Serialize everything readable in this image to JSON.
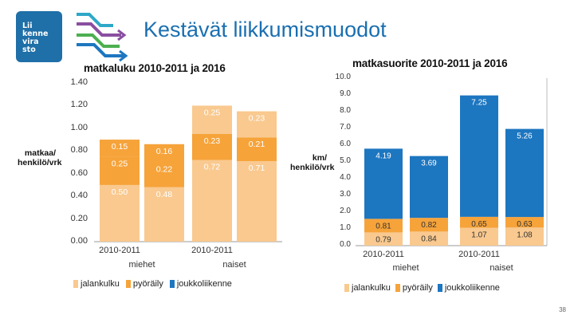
{
  "logo_lines": [
    "Lii",
    "kenne",
    "vira",
    "sto"
  ],
  "slide_title": "Kestävät liikkumismuodot",
  "page_number": "38",
  "legend": [
    {
      "label": "jalankulku",
      "color": "#f9c98f"
    },
    {
      "label": "pyöräily",
      "color": "#f6a33a"
    },
    {
      "label": "joukkoliikenne",
      "color": "#1d76c0"
    }
  ],
  "chart_data": [
    {
      "type": "bar",
      "stacked": true,
      "title": "matkaluku 2010-2011 ja 2016",
      "ylabel": "matkaa/ henkilö/vrk",
      "ylim": [
        0,
        1.4
      ],
      "yticks": [
        "0.00",
        "0.20",
        "0.40",
        "0.60",
        "0.80",
        "1.00",
        "1.20",
        "1.40"
      ],
      "categories": [
        "2010-2011",
        "",
        "2010-2011",
        ""
      ],
      "groups": [
        "miehet",
        "naiset"
      ],
      "series": [
        {
          "name": "jalankulku",
          "values": [
            0.5,
            0.48,
            0.72,
            0.71
          ],
          "labels": [
            "0.50",
            "0.48",
            "0.72",
            "0.71"
          ]
        },
        {
          "name": "pyöräily",
          "values": [
            0.25,
            0.22,
            0.0,
            0.0
          ],
          "labels": [
            "0.25",
            "0.22",
            "",
            ""
          ]
        },
        {
          "name": "joukkoliikenne",
          "values": [
            0.15,
            0.16,
            0.0,
            0.0
          ],
          "labels": [
            "0.15",
            "0.16",
            "",
            ""
          ]
        },
        {
          "name": "",
          "values": [
            0.0,
            0.0,
            0.23,
            0.21
          ],
          "labels": [
            "",
            "",
            "0.23",
            "0.21"
          ]
        },
        {
          "name": "",
          "values": [
            0.0,
            0.0,
            0.25,
            0.23
          ],
          "labels": [
            "",
            "",
            "0.25",
            "0.23"
          ]
        }
      ]
    },
    {
      "type": "bar",
      "stacked": true,
      "title": "matkasuorite 2010-2011 ja 2016",
      "ylabel": "km/ henkilö/vrk",
      "ylim": [
        0,
        10
      ],
      "yticks": [
        "0.0",
        "1.0",
        "2.0",
        "3.0",
        "4.0",
        "5.0",
        "6.0",
        "7.0",
        "8.0",
        "9.0",
        "10.0"
      ],
      "categories": [
        "2010-2011",
        "",
        "2010-2011",
        ""
      ],
      "groups": [
        "miehet",
        "naiset"
      ],
      "series": [
        {
          "name": "jalankulku",
          "values": [
            0.79,
            0.84,
            1.07,
            1.08
          ],
          "labels": [
            "0.79",
            "0.84",
            "1.07",
            "1.08"
          ]
        },
        {
          "name": "pyöräily",
          "values": [
            0.81,
            0.82,
            0.65,
            0.63
          ],
          "labels": [
            "0.81",
            "0.82",
            "0.65",
            "0.63"
          ]
        },
        {
          "name": "joukkoliikenne",
          "values": [
            4.19,
            3.69,
            7.25,
            5.26
          ],
          "labels": [
            "4.19",
            "3.69",
            "7.25",
            "5.26"
          ]
        }
      ]
    }
  ]
}
